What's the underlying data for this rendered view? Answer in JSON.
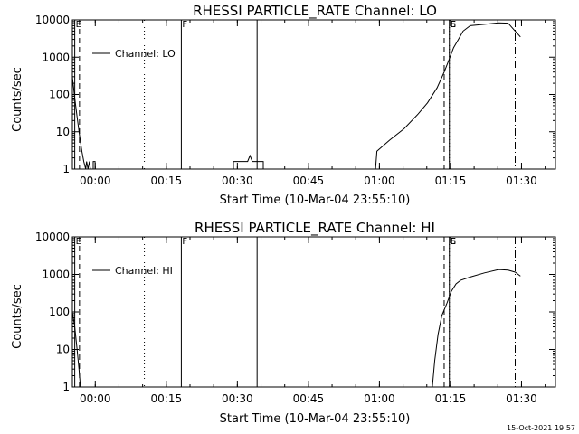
{
  "footer": {
    "timestamp": "15-Oct-2021 19:57"
  },
  "chart_data": [
    {
      "type": "line",
      "title": "RHESSI PARTICLE_RATE Channel: LO",
      "xlabel": "Start Time (10-Mar-04 23:55:10)",
      "ylabel": "Counts/sec",
      "yscale": "log",
      "ylim": [
        1,
        10000
      ],
      "xlim_minutes": [
        0,
        102
      ],
      "x_ticks": [
        {
          "label": "00:00",
          "min": 4.83
        },
        {
          "label": "00:15",
          "min": 19.83
        },
        {
          "label": "00:30",
          "min": 34.83
        },
        {
          "label": "00:45",
          "min": 49.83
        },
        {
          "label": "01:00",
          "min": 64.83
        },
        {
          "label": "01:15",
          "min": 79.83
        },
        {
          "label": "01:30",
          "min": 94.83
        }
      ],
      "y_ticks": [
        "1",
        "10",
        "100",
        "1000",
        "10000"
      ],
      "legend": {
        "label": "Channel: LO",
        "position": "top-left"
      },
      "markers": [
        {
          "min": 0.5,
          "style": "solid",
          "label": "E"
        },
        {
          "min": 1.5,
          "style": "dashed",
          "label": ""
        },
        {
          "min": 15.2,
          "style": "dotted",
          "label": ""
        },
        {
          "min": 23.0,
          "style": "solid",
          "label": "F"
        },
        {
          "min": 39.0,
          "style": "solid",
          "label": ""
        },
        {
          "min": 78.5,
          "style": "dashed",
          "label": ""
        },
        {
          "min": 79.6,
          "style": "dotted",
          "label": "S"
        },
        {
          "min": 79.6,
          "style": "solid",
          "label": "E"
        },
        {
          "min": 93.5,
          "style": "dashdot",
          "label": ""
        }
      ],
      "series": [
        {
          "name": "Channel: LO",
          "points": [
            [
              0,
              300
            ],
            [
              0.5,
              80
            ],
            [
              1.0,
              25
            ],
            [
              1.5,
              8
            ],
            [
              2.0,
              3
            ],
            [
              2.4,
              1.6
            ],
            [
              2.8,
              1
            ],
            [
              3.0,
              1.6
            ],
            [
              3.3,
              1
            ],
            [
              3.6,
              1.6
            ],
            [
              3.8,
              1
            ],
            [
              4.4,
              1
            ],
            [
              4.4,
              1.6
            ],
            [
              4.8,
              1.6
            ],
            [
              4.8,
              1
            ],
            [
              34.0,
              1
            ],
            [
              34.0,
              1.6
            ],
            [
              37.0,
              1.6
            ],
            [
              37.5,
              2.3
            ],
            [
              38.0,
              1.6
            ],
            [
              40.3,
              1.6
            ],
            [
              40.3,
              1
            ],
            [
              64.0,
              1
            ],
            [
              64.3,
              3
            ],
            [
              67,
              6
            ],
            [
              70,
              12
            ],
            [
              73,
              30
            ],
            [
              75,
              60
            ],
            [
              77,
              150
            ],
            [
              78.5,
              400
            ],
            [
              79.6,
              900
            ],
            [
              80.5,
              1800
            ],
            [
              81.5,
              3000
            ],
            [
              82.5,
              5000
            ],
            [
              84,
              7000
            ],
            [
              87,
              7600
            ],
            [
              90,
              8300
            ],
            [
              92,
              8200
            ],
            [
              93.5,
              5000
            ],
            [
              94.6,
              3500
            ]
          ]
        }
      ]
    },
    {
      "type": "line",
      "title": "RHESSI PARTICLE_RATE Channel: HI",
      "xlabel": "Start Time (10-Mar-04 23:55:10)",
      "ylabel": "Counts/sec",
      "yscale": "log",
      "ylim": [
        1,
        10000
      ],
      "xlim_minutes": [
        0,
        102
      ],
      "x_ticks": [
        {
          "label": "00:00",
          "min": 4.83
        },
        {
          "label": "00:15",
          "min": 19.83
        },
        {
          "label": "00:30",
          "min": 34.83
        },
        {
          "label": "00:45",
          "min": 49.83
        },
        {
          "label": "01:00",
          "min": 64.83
        },
        {
          "label": "01:15",
          "min": 79.83
        },
        {
          "label": "01:30",
          "min": 94.83
        }
      ],
      "y_ticks": [
        "1",
        "10",
        "100",
        "1000",
        "10000"
      ],
      "legend": {
        "label": "Channel: HI",
        "position": "top-left"
      },
      "markers": [
        {
          "min": 0.5,
          "style": "solid",
          "label": "E"
        },
        {
          "min": 1.5,
          "style": "dashed",
          "label": ""
        },
        {
          "min": 15.2,
          "style": "dotted",
          "label": ""
        },
        {
          "min": 23.0,
          "style": "solid",
          "label": "F"
        },
        {
          "min": 39.0,
          "style": "solid",
          "label": ""
        },
        {
          "min": 78.5,
          "style": "dashed",
          "label": ""
        },
        {
          "min": 79.6,
          "style": "dotted",
          "label": "S"
        },
        {
          "min": 79.6,
          "style": "solid",
          "label": "E"
        },
        {
          "min": 93.5,
          "style": "dashdot",
          "label": ""
        }
      ],
      "series": [
        {
          "name": "Channel: HI",
          "points": [
            [
              0,
              100
            ],
            [
              0.5,
              40
            ],
            [
              1.0,
              10
            ],
            [
              1.4,
              3
            ],
            [
              1.7,
              1
            ],
            [
              76.0,
              1
            ],
            [
              76.5,
              5
            ],
            [
              77.2,
              25
            ],
            [
              78.0,
              80
            ],
            [
              79.0,
              160
            ],
            [
              80.0,
              350
            ],
            [
              81.0,
              560
            ],
            [
              82.0,
              700
            ],
            [
              84.0,
              850
            ],
            [
              87.0,
              1100
            ],
            [
              90.0,
              1350
            ],
            [
              92.0,
              1300
            ],
            [
              93.5,
              1150
            ],
            [
              94.6,
              900
            ]
          ]
        }
      ]
    }
  ]
}
